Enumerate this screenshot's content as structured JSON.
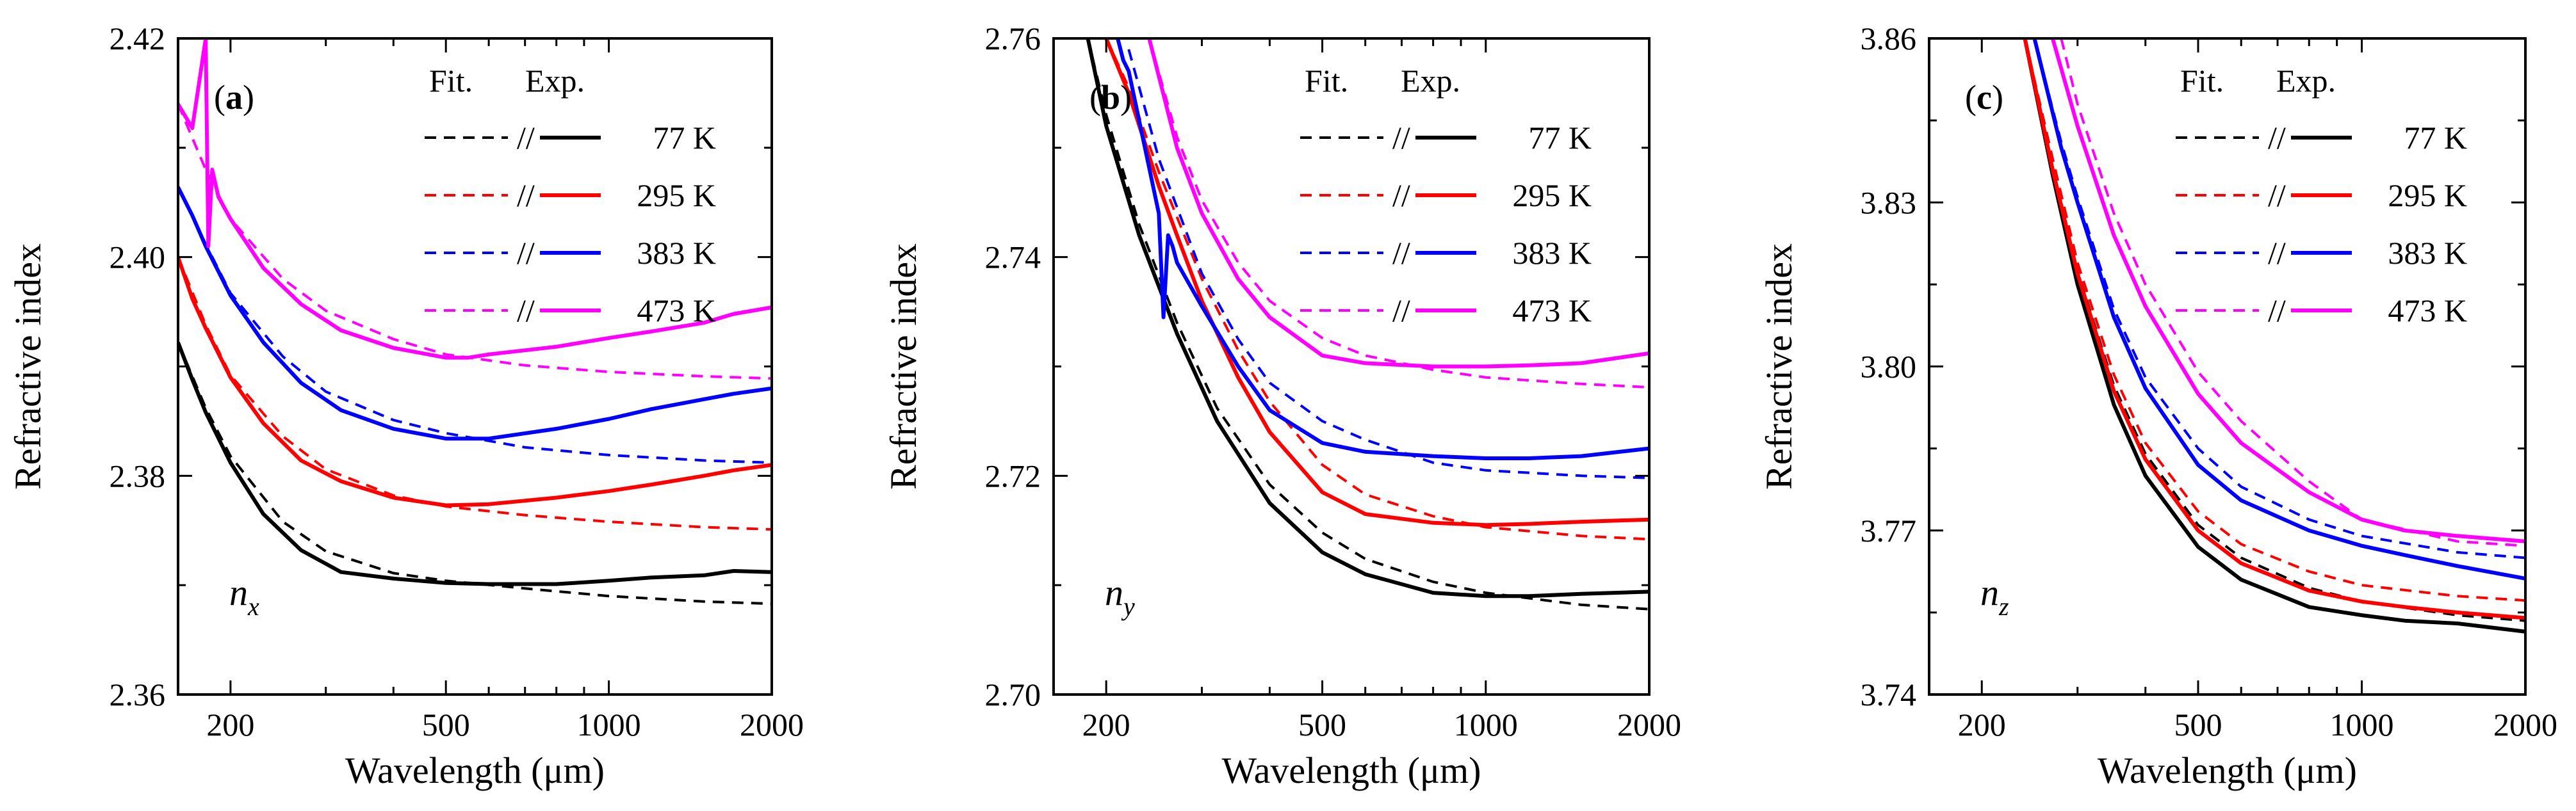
{
  "chart_data": [
    {
      "type": "line",
      "panel_tag": "a",
      "component_label": "n",
      "component_sub": "x",
      "xlabel": "Wavelength (μm)",
      "ylabel": "Refractive index",
      "xscale": "log",
      "xlim": [
        160,
        2000
      ],
      "ylim": [
        2.36,
        2.42
      ],
      "xticks": [
        200,
        500,
        1000,
        2000
      ],
      "xtick_labels": [
        "200",
        "500",
        "1000",
        "2000"
      ],
      "yticks": [
        2.36,
        2.38,
        2.4,
        2.42
      ],
      "ytick_labels": [
        "2.36",
        "2.38",
        "2.40",
        "2.42"
      ],
      "legend": {
        "fit_header": "Fit.",
        "exp_header": "Exp.",
        "separator": "//",
        "position": "top-right"
      },
      "series": [
        {
          "name": "77 K",
          "color": "#000000",
          "exp": {
            "x": [
              160,
              170,
              180,
              200,
              230,
              270,
              320,
              400,
              500,
              600,
              800,
              1000,
              1200,
              1500,
              1700,
              2000
            ],
            "y": [
              2.3922,
              2.3888,
              2.3858,
              2.3812,
              2.3765,
              2.3732,
              2.3712,
              2.3706,
              2.3702,
              2.3701,
              2.3701,
              2.3704,
              2.3707,
              2.3709,
              2.3713,
              2.3712
            ]
          },
          "fit": {
            "x": [
              160,
              180,
              200,
              250,
              300,
              400,
              500,
              700,
              1000,
              1500,
              2000
            ],
            "y": [
              2.3922,
              2.3862,
              2.3818,
              2.3758,
              2.3731,
              2.3711,
              2.3704,
              2.3697,
              2.369,
              2.3685,
              2.3683
            ]
          }
        },
        {
          "name": "295 K",
          "color": "#ff0000",
          "exp": {
            "x": [
              160,
              170,
              180,
              200,
              230,
              270,
              320,
              400,
              500,
              600,
              800,
              1000,
              1200,
              1500,
              1700,
              2000
            ],
            "y": [
              2.4,
              2.3962,
              2.3935,
              2.389,
              2.3848,
              2.3814,
              2.3795,
              2.378,
              2.3773,
              2.3774,
              2.378,
              2.3786,
              2.3792,
              2.38,
              2.3805,
              2.381
            ]
          },
          "fit": {
            "x": [
              160,
              180,
              200,
              250,
              300,
              400,
              500,
              700,
              1000,
              1500,
              2000
            ],
            "y": [
              2.4,
              2.3938,
              2.3892,
              2.3836,
              2.3806,
              2.3782,
              2.3772,
              2.3764,
              2.3758,
              2.3753,
              2.3751
            ]
          }
        },
        {
          "name": "383 K",
          "color": "#0000ff",
          "exp": {
            "x": [
              160,
              170,
              180,
              200,
              230,
              270,
              320,
              400,
              500,
              600,
              800,
              1000,
              1200,
              1500,
              1700,
              2000
            ],
            "y": [
              2.4064,
              2.4038,
              2.401,
              2.3965,
              2.3922,
              2.3885,
              2.386,
              2.3843,
              2.3834,
              2.3834,
              2.3843,
              2.3852,
              2.3861,
              2.387,
              2.3875,
              2.388
            ]
          },
          "fit": {
            "x": [
              160,
              180,
              200,
              250,
              300,
              400,
              500,
              700,
              1000,
              1500,
              2000
            ],
            "y": [
              2.4064,
              2.4012,
              2.3967,
              2.3909,
              2.3877,
              2.3851,
              2.3839,
              2.3826,
              2.3819,
              2.3814,
              2.3812
            ]
          }
        },
        {
          "name": "473 K",
          "color": "#ff00ff",
          "exp": {
            "x": [
              160,
              170,
              180,
              182,
              185,
              190,
              200,
              230,
              270,
              320,
              400,
              500,
              550,
              600,
              800,
              1000,
              1200,
              1500,
              1700,
              2000
            ],
            "y": [
              2.414,
              2.4118,
              2.42,
              2.401,
              2.408,
              2.4055,
              2.4035,
              2.399,
              2.3957,
              2.3933,
              2.3917,
              2.3908,
              2.3908,
              2.3911,
              2.3918,
              2.3926,
              2.3932,
              2.394,
              2.3948,
              2.3954
            ]
          },
          "fit": {
            "x": [
              160,
              180,
              200,
              250,
              300,
              400,
              500,
              700,
              1000,
              1500,
              2000
            ],
            "y": [
              2.414,
              2.408,
              2.4035,
              2.398,
              2.3951,
              2.3925,
              2.3911,
              2.3901,
              2.3895,
              2.3891,
              2.3889
            ]
          }
        }
      ]
    },
    {
      "type": "line",
      "panel_tag": "b",
      "component_label": "n",
      "component_sub": "y",
      "xlabel": "Wavelength (μm)",
      "ylabel": "Refractive index",
      "xscale": "log",
      "xlim": [
        160,
        2000
      ],
      "ylim": [
        2.7,
        2.76
      ],
      "xticks": [
        200,
        500,
        1000,
        2000
      ],
      "xtick_labels": [
        "200",
        "500",
        "1000",
        "2000"
      ],
      "yticks": [
        2.7,
        2.72,
        2.74,
        2.76
      ],
      "ytick_labels": [
        "2.70",
        "2.72",
        "2.74",
        "2.76"
      ],
      "legend": {
        "fit_header": "Fit.",
        "exp_header": "Exp.",
        "separator": "//",
        "position": "top-right"
      },
      "series": [
        {
          "name": "77 K",
          "color": "#000000",
          "exp": {
            "x": [
              185,
              200,
              230,
              270,
              320,
              400,
              500,
              600,
              800,
              1000,
              1200,
              1500,
              2000
            ],
            "y": [
              2.76,
              2.752,
              2.742,
              2.733,
              2.725,
              2.7175,
              2.713,
              2.711,
              2.7093,
              2.709,
              2.709,
              2.7092,
              2.7094
            ]
          },
          "fit": {
            "x": [
              185,
              200,
              230,
              270,
              320,
              400,
              500,
              600,
              800,
              1000,
              1500,
              2000
            ],
            "y": [
              2.76,
              2.753,
              2.743,
              2.734,
              2.7262,
              2.7192,
              2.7148,
              2.7124,
              2.7103,
              2.7093,
              2.7082,
              2.7078
            ]
          }
        },
        {
          "name": "295 K",
          "color": "#ff0000",
          "exp": {
            "x": [
              200,
              220,
              250,
              270,
              300,
              350,
              400,
              500,
              600,
              800,
              1000,
              1200,
              1500,
              2000
            ],
            "y": [
              2.76,
              2.755,
              2.7465,
              2.742,
              2.736,
              2.729,
              2.724,
              2.7185,
              2.7165,
              2.7157,
              2.7155,
              2.7156,
              2.7158,
              2.716
            ]
          },
          "fit": {
            "x": [
              200,
              220,
              250,
              300,
              350,
              400,
              500,
              600,
              800,
              1000,
              1500,
              2000
            ],
            "y": [
              2.76,
              2.7555,
              2.7478,
              2.738,
              2.7315,
              2.7268,
              2.721,
              2.7183,
              2.7163,
              2.7153,
              2.7145,
              2.7142
            ]
          }
        },
        {
          "name": "383 K",
          "color": "#0000ff",
          "exp": {
            "x": [
              210,
              215,
              220,
              250,
              255,
              260,
              265,
              270,
              300,
              350,
              400,
              500,
              600,
              800,
              1000,
              1200,
              1500,
              2000
            ],
            "y": [
              2.76,
              2.758,
              2.757,
              2.744,
              2.7345,
              2.742,
              2.741,
              2.7395,
              2.7355,
              2.73,
              2.726,
              2.723,
              2.7222,
              2.7218,
              2.7216,
              2.7216,
              2.7218,
              2.7225
            ]
          },
          "fit": {
            "x": [
              220,
              250,
              300,
              350,
              400,
              500,
              600,
              800,
              1000,
              1500,
              2000
            ],
            "y": [
              2.759,
              2.749,
              2.7385,
              2.7325,
              2.7285,
              2.725,
              2.7233,
              2.7212,
              2.7205,
              2.72,
              2.7198
            ]
          }
        },
        {
          "name": "473 K",
          "color": "#ff00ff",
          "exp": {
            "x": [
              240,
              270,
              300,
              350,
              400,
              500,
              600,
              800,
              1000,
              1200,
              1500,
              2000
            ],
            "y": [
              2.76,
              2.75,
              2.744,
              2.738,
              2.7345,
              2.731,
              2.7303,
              2.73,
              2.73,
              2.7301,
              2.7303,
              2.7312
            ]
          },
          "fit": {
            "x": [
              240,
              270,
              300,
              350,
              400,
              500,
              600,
              800,
              1000,
              1500,
              2000
            ],
            "y": [
              2.76,
              2.751,
              2.7452,
              2.7395,
              2.736,
              2.7326,
              2.731,
              2.7297,
              2.729,
              2.7284,
              2.7281
            ]
          }
        }
      ]
    },
    {
      "type": "line",
      "panel_tag": "c",
      "component_label": "n",
      "component_sub": "z",
      "xlabel": "Wavelength (μm)",
      "ylabel": "Refractive index",
      "xscale": "log",
      "xlim": [
        160,
        2000
      ],
      "ylim": [
        3.74,
        3.86
      ],
      "xticks": [
        200,
        500,
        1000,
        2000
      ],
      "xtick_labels": [
        "200",
        "500",
        "1000",
        "2000"
      ],
      "yticks": [
        3.74,
        3.77,
        3.8,
        3.83,
        3.86
      ],
      "ytick_labels": [
        "3.74",
        "3.77",
        "3.80",
        "3.83",
        "3.86"
      ],
      "legend": {
        "fit_header": "Fit.",
        "exp_header": "Exp.",
        "separator": "//",
        "position": "top-right"
      },
      "series": [
        {
          "name": "77 K",
          "color": "#000000",
          "exp": {
            "x": [
              240,
              270,
              300,
              350,
              400,
              500,
              600,
              800,
              1000,
              1200,
              1500,
              2000
            ],
            "y": [
              3.86,
              3.835,
              3.815,
              3.793,
              3.78,
              3.767,
              3.761,
              3.756,
              3.7545,
              3.7535,
              3.753,
              3.7515
            ]
          },
          "fit": {
            "x": [
              240,
              270,
              300,
              350,
              400,
              500,
              600,
              800,
              1000,
              1500,
              2000
            ],
            "y": [
              3.86,
              3.837,
              3.8175,
              3.7965,
              3.784,
              3.771,
              3.765,
              3.7595,
              3.757,
              3.7545,
              3.7535
            ]
          }
        },
        {
          "name": "295 K",
          "color": "#ff0000",
          "exp": {
            "x": [
              240,
              270,
              300,
              350,
              400,
              500,
              600,
              800,
              1000,
              1200,
              1500,
              2000
            ],
            "y": [
              3.86,
              3.836,
              3.817,
              3.7955,
              3.783,
              3.77,
              3.764,
              3.759,
              3.757,
              3.756,
              3.755,
              3.754
            ]
          },
          "fit": {
            "x": [
              240,
              270,
              300,
              350,
              400,
              500,
              600,
              800,
              1000,
              1500,
              2000
            ],
            "y": [
              3.86,
              3.838,
              3.819,
              3.7985,
              3.786,
              3.7735,
              3.7675,
              3.7625,
              3.76,
              3.758,
              3.7572
            ]
          }
        },
        {
          "name": "383 K",
          "color": "#0000ff",
          "exp": {
            "x": [
              250,
              280,
              300,
              350,
              400,
              500,
              600,
              800,
              1000,
              1200,
              1500,
              2000
            ],
            "y": [
              3.86,
              3.84,
              3.83,
              3.809,
              3.796,
              3.782,
              3.7755,
              3.77,
              3.7672,
              3.7655,
              3.7635,
              3.7612
            ]
          },
          "fit": {
            "x": [
              250,
              280,
              300,
              350,
              400,
              500,
              600,
              800,
              1000,
              1500,
              2000
            ],
            "y": [
              3.86,
              3.841,
              3.831,
              3.8105,
              3.798,
              3.785,
              3.778,
              3.772,
              3.769,
              3.766,
              3.765
            ]
          }
        },
        {
          "name": "473 K",
          "color": "#ff00ff",
          "exp": {
            "x": [
              270,
              300,
              350,
              400,
              500,
              600,
              800,
              1000,
              1200,
              1500,
              2000
            ],
            "y": [
              3.86,
              3.844,
              3.824,
              3.811,
              3.795,
              3.786,
              3.777,
              3.772,
              3.77,
              3.769,
              3.768
            ]
          },
          "fit": {
            "x": [
              280,
              300,
              350,
              400,
              500,
              600,
              800,
              1000,
              1500,
              2000
            ],
            "y": [
              3.86,
              3.848,
              3.828,
              3.815,
              3.799,
              3.79,
              3.779,
              3.772,
              3.768,
              3.7672
            ]
          }
        }
      ]
    }
  ]
}
